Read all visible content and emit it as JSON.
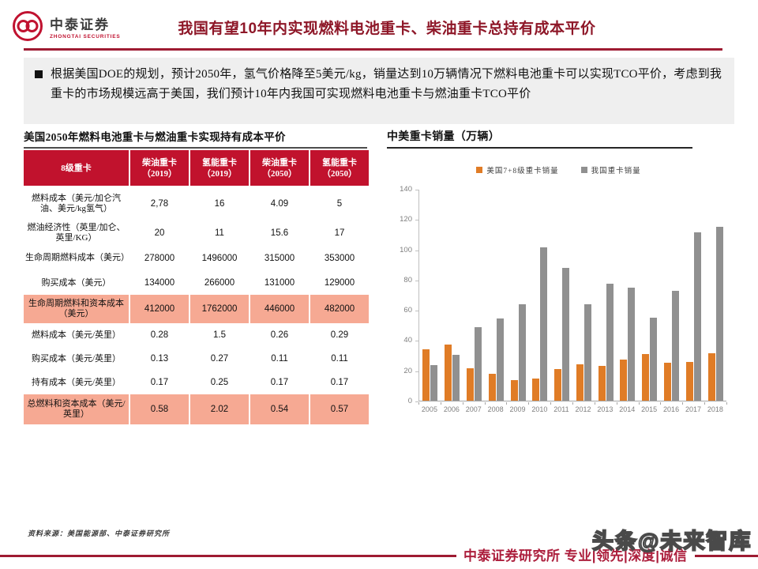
{
  "header": {
    "logo_cn": "中泰证券",
    "logo_en": "ZHONGTAI SECURITIES",
    "title": "我国有望10年内实现燃料电池重卡、柴油重卡总持有成本平价"
  },
  "summary": {
    "text": "根据美国DOE的规划，预计2050年，氢气价格降至5美元/kg，销量达到10万辆情况下燃料电池重卡可以实现TCO平价，考虑到我重卡的市场规模远高于美国，我们预计10年内我国可实现燃料电池重卡与燃油重卡TCO平价"
  },
  "table_section": {
    "title": "美国2050年燃料电池重卡与燃油重卡实现持有成本平价",
    "columns": [
      {
        "line1": "8级重卡",
        "line2": ""
      },
      {
        "line1": "柴油重卡",
        "line2": "（2019）"
      },
      {
        "line1": "氢能重卡",
        "line2": "（2019）"
      },
      {
        "line1": "柴油重卡",
        "line2": "（2050）"
      },
      {
        "line1": "氢能重卡",
        "line2": "（2050）"
      }
    ],
    "rows": [
      {
        "label": "燃料成本（美元/加仑汽油、美元/kg氢气）",
        "values": [
          "2,78",
          "16",
          "4.09",
          "5"
        ],
        "highlight": false
      },
      {
        "label": "燃油经济性（英里/加仑、英里/KG）",
        "values": [
          "20",
          "11",
          "15.6",
          "17"
        ],
        "highlight": false
      },
      {
        "label": "生命周期燃料成本（美元）",
        "values": [
          "278000",
          "1496000",
          "315000",
          "353000"
        ],
        "highlight": false
      },
      {
        "label": "购买成本（美元）",
        "values": [
          "134000",
          "266000",
          "131000",
          "129000"
        ],
        "highlight": false
      },
      {
        "label": "生命周期燃料和资本成本（美元）",
        "values": [
          "412000",
          "1762000",
          "446000",
          "482000"
        ],
        "highlight": true
      },
      {
        "label": "燃料成本（美元/英里）",
        "values": [
          "0.28",
          "1.5",
          "0.26",
          "0.29"
        ],
        "highlight": false
      },
      {
        "label": "购买成本（美元/英里）",
        "values": [
          "0.13",
          "0.27",
          "0.11",
          "0.11"
        ],
        "highlight": false
      },
      {
        "label": "持有成本（美元/英里）",
        "values": [
          "0.17",
          "0.25",
          "0.17",
          "0.17"
        ],
        "highlight": false
      },
      {
        "label": "总燃料和资本成本（美元/英里）",
        "values": [
          "0.58",
          "2.02",
          "0.54",
          "0.57"
        ],
        "highlight": true
      }
    ]
  },
  "chart_section": {
    "title": "中美重卡销量（万辆）"
  },
  "chart_data": {
    "type": "bar",
    "title": "中美重卡销量（万辆）",
    "categories": [
      "2005",
      "2006",
      "2007",
      "2008",
      "2009",
      "2010",
      "2011",
      "2012",
      "2013",
      "2014",
      "2015",
      "2016",
      "2017",
      "2018"
    ],
    "series": [
      {
        "name": "美国7+8级重卡销量",
        "color": "#e07c26",
        "values": [
          34,
          37,
          21.5,
          18,
          13.5,
          14.5,
          21,
          24,
          23,
          27,
          31,
          25,
          25.5,
          31.5
        ]
      },
      {
        "name": "我国重卡销量",
        "color": "#909090",
        "values": [
          23.5,
          30.5,
          48.5,
          54.5,
          63.5,
          101.5,
          88,
          63.5,
          77.5,
          74.5,
          55,
          72.5,
          111.5,
          114.8
        ]
      }
    ],
    "ylim": [
      0,
      140
    ],
    "ytick_step": 20,
    "legend_position": "top-center",
    "grid": false
  },
  "footer": {
    "source": "资料来源：美国能源部、中泰证券研究所",
    "slogan": "中泰证券研究所 专业|领先|深度|诚信",
    "watermark": "头条@未来智库"
  },
  "colors": {
    "brand_red": "#c01230",
    "title_red": "#8e1728",
    "rule_red": "#9e1b32",
    "table_header_bg": "#c1122d",
    "highlight_bg": "#f6a993",
    "summary_bg": "#efefef",
    "bar_us": "#e07c26",
    "bar_cn": "#909090"
  }
}
